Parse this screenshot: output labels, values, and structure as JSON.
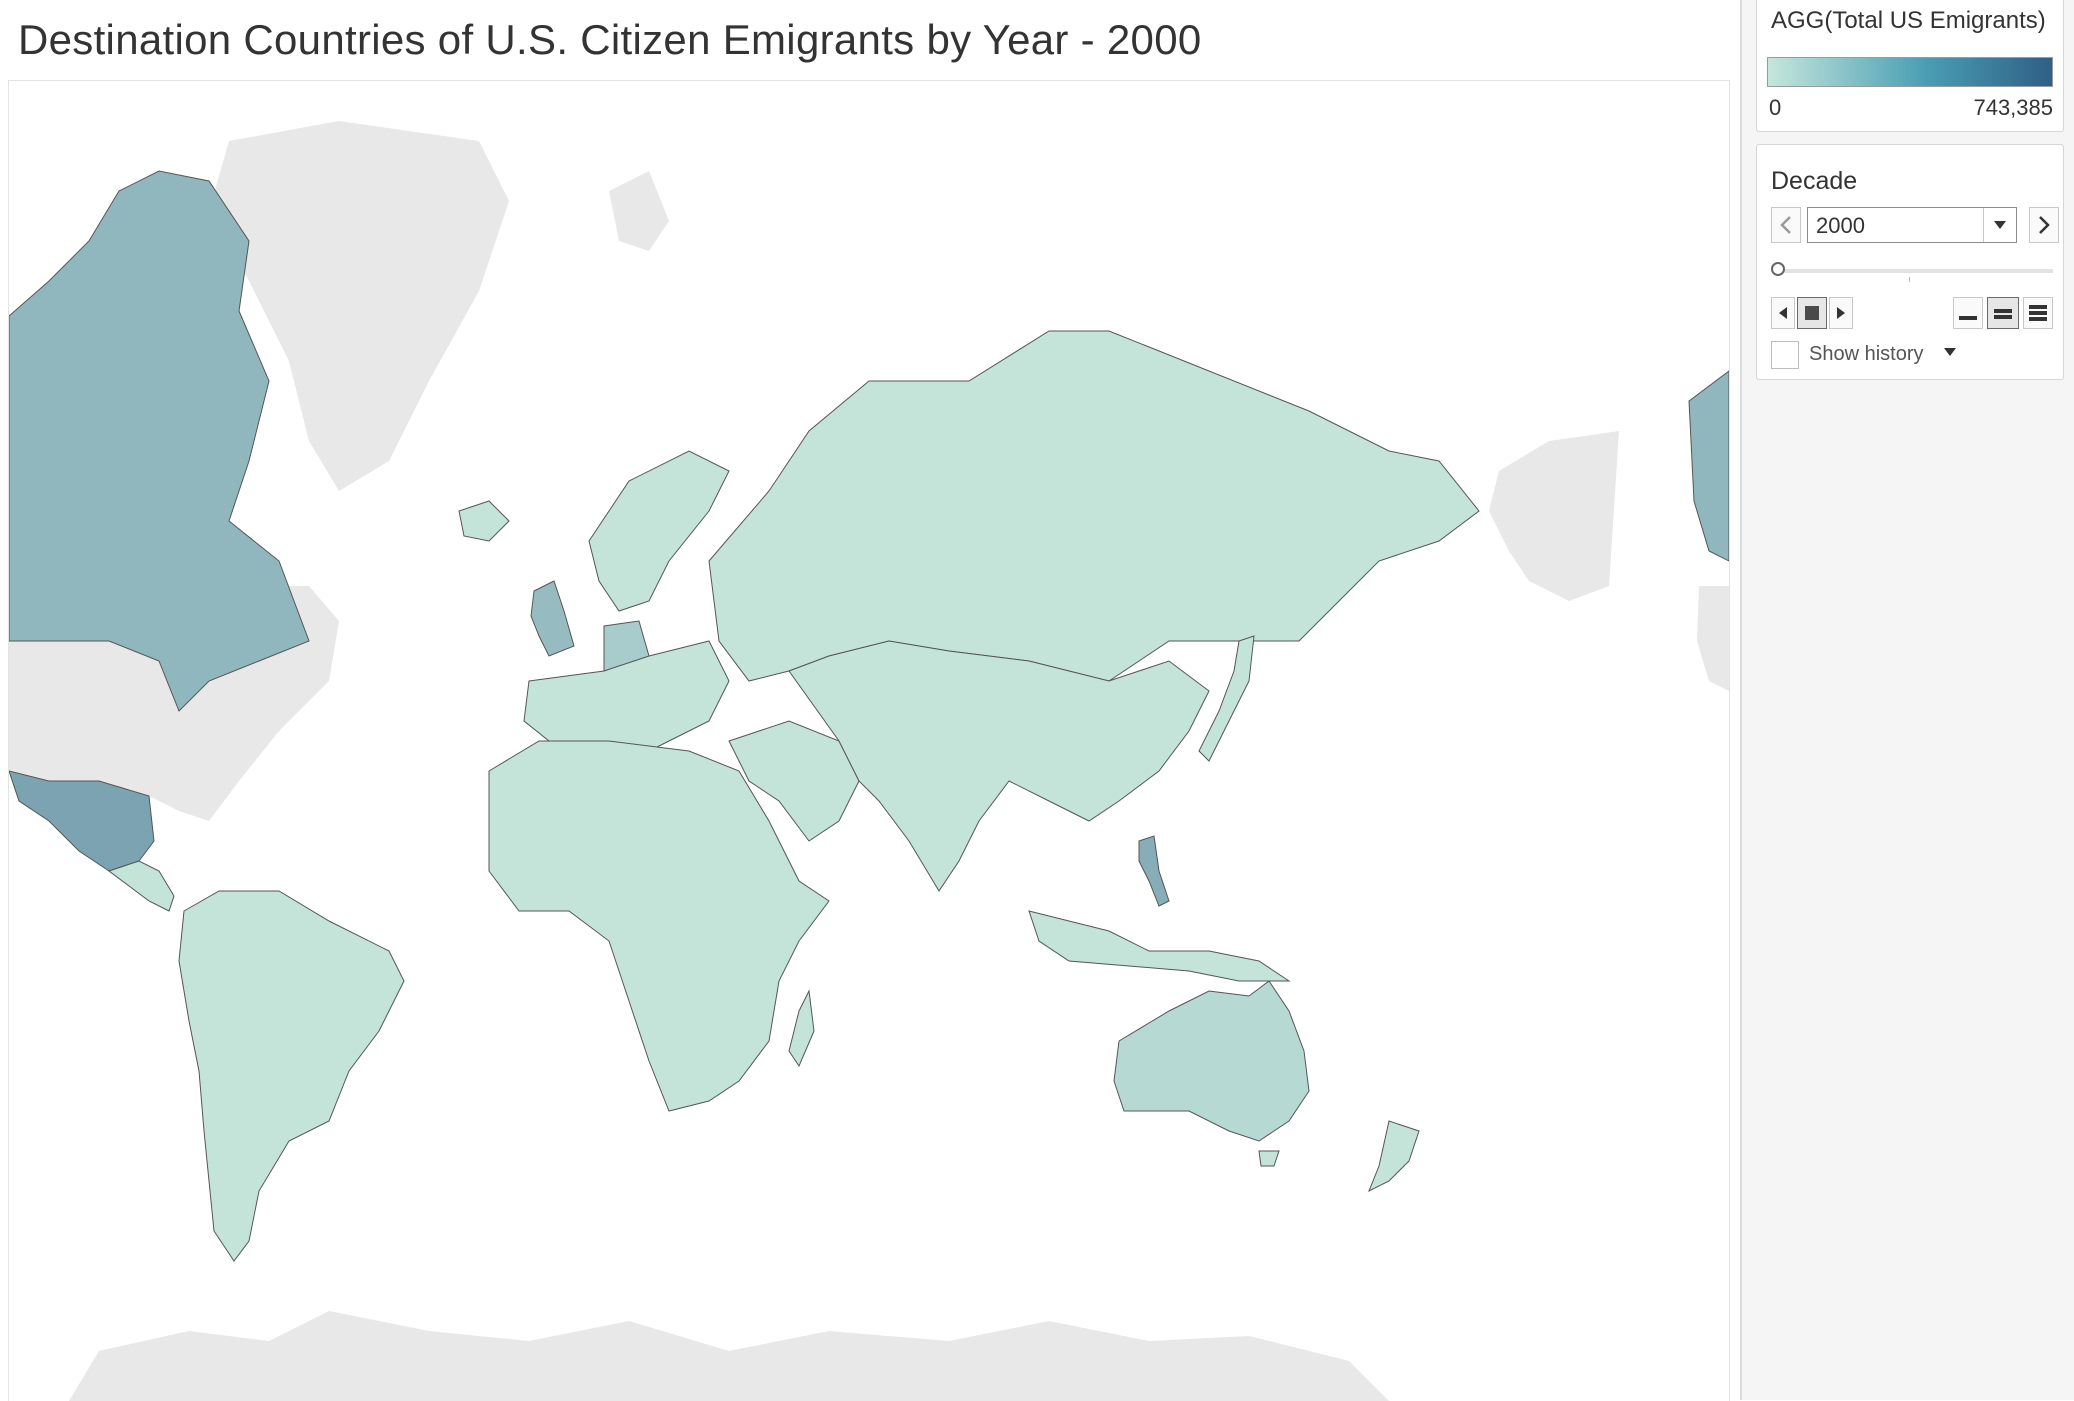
{
  "title": "Destination Countries of U.S. Citizen Emigrants by Year - 2000",
  "legend": {
    "title": "AGG(Total US Emigrants)",
    "min_label": "0",
    "max_label": "743,385",
    "color_low": "#c6e6dc",
    "color_high": "#2f5f86"
  },
  "decade_filter": {
    "title": "Decade",
    "selected": "2000",
    "show_history_label": "Show history"
  },
  "colors": {
    "no_data_land": "#e8e8e8",
    "default_country": "#c4e4da",
    "country_border": "#555555"
  },
  "map_regions": [
    {
      "name": "Canada",
      "level": 0.35
    },
    {
      "name": "United States of America",
      "level": null
    },
    {
      "name": "Alaska (USA)",
      "level": null
    },
    {
      "name": "Mexico",
      "level": 0.5
    },
    {
      "name": "Philippines",
      "level": 0.42
    },
    {
      "name": "United Kingdom",
      "level": 0.32
    },
    {
      "name": "Germany",
      "level": 0.2
    },
    {
      "name": "Australia",
      "level": 0.1
    },
    {
      "name": "Greenland",
      "level": null
    },
    {
      "name": "Antarctica",
      "level": null
    }
  ]
}
